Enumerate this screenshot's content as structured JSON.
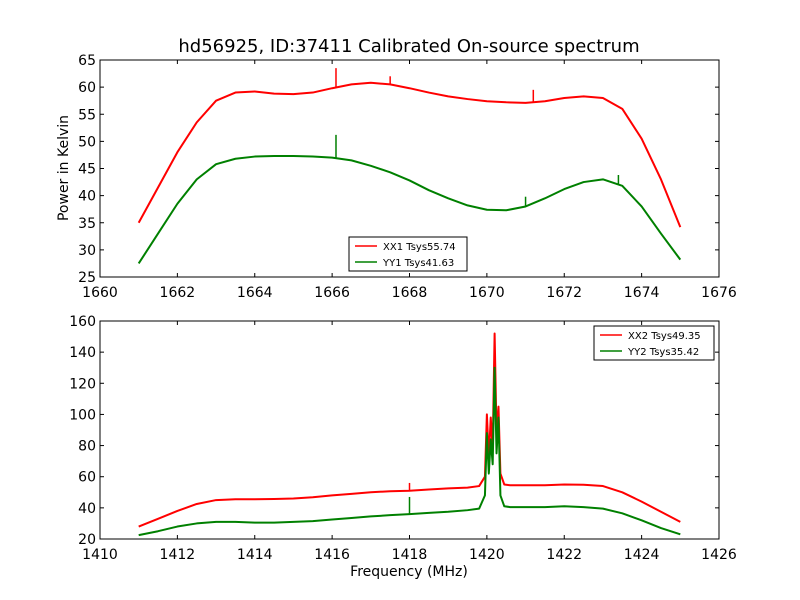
{
  "chart_data": {
    "title": "hd56925, ID:37411 Calibrated On-source spectrum",
    "xlabel": "Frequency (MHz)",
    "panels": [
      {
        "type": "line",
        "ylabel": "Power in Kelvin",
        "xlim": [
          1660,
          1676
        ],
        "ylim": [
          25,
          65
        ],
        "xticks": [
          1660,
          1662,
          1664,
          1666,
          1668,
          1670,
          1672,
          1674,
          1676
        ],
        "yticks": [
          25,
          30,
          35,
          40,
          45,
          50,
          55,
          60,
          65
        ],
        "legend_position": "bottom-center",
        "series": [
          {
            "name": "XX1 Tsys55.74",
            "color": "#ff0000",
            "x": [
              1661.0,
              1661.5,
              1662.0,
              1662.5,
              1663.0,
              1663.5,
              1664.0,
              1664.5,
              1665.0,
              1665.5,
              1666.0,
              1666.5,
              1667.0,
              1667.5,
              1668.0,
              1668.5,
              1669.0,
              1669.5,
              1670.0,
              1670.5,
              1671.0,
              1671.5,
              1672.0,
              1672.5,
              1673.0,
              1673.5,
              1674.0,
              1674.5,
              1675.0
            ],
            "y": [
              35.0,
              41.5,
              48.0,
              53.5,
              57.5,
              59.0,
              59.2,
              58.8,
              58.7,
              59.0,
              59.8,
              60.5,
              60.8,
              60.5,
              59.8,
              59.0,
              58.3,
              57.8,
              57.4,
              57.2,
              57.1,
              57.4,
              58.0,
              58.3,
              58.0,
              56.0,
              50.5,
              43.0,
              34.2
            ],
            "spikes": [
              {
                "x": 1666.1,
                "y": 63.5
              },
              {
                "x": 1667.5,
                "y": 62.0
              },
              {
                "x": 1671.2,
                "y": 59.5
              }
            ]
          },
          {
            "name": "YY1 Tsys41.63",
            "color": "#008000",
            "x": [
              1661.0,
              1661.5,
              1662.0,
              1662.5,
              1663.0,
              1663.5,
              1664.0,
              1664.5,
              1665.0,
              1665.5,
              1666.0,
              1666.5,
              1667.0,
              1667.5,
              1668.0,
              1668.5,
              1669.0,
              1669.5,
              1670.0,
              1670.5,
              1671.0,
              1671.5,
              1672.0,
              1672.5,
              1673.0,
              1673.5,
              1674.0,
              1674.5,
              1675.0
            ],
            "y": [
              27.5,
              33.0,
              38.5,
              43.0,
              45.8,
              46.8,
              47.2,
              47.3,
              47.3,
              47.2,
              47.0,
              46.5,
              45.5,
              44.3,
              42.8,
              41.0,
              39.5,
              38.2,
              37.4,
              37.3,
              38.0,
              39.5,
              41.2,
              42.5,
              43.0,
              41.8,
              38.0,
              33.0,
              28.2
            ],
            "spikes": [
              {
                "x": 1666.1,
                "y": 51.2
              },
              {
                "x": 1671.0,
                "y": 39.8
              },
              {
                "x": 1673.4,
                "y": 43.8
              }
            ]
          }
        ]
      },
      {
        "type": "line",
        "ylabel": "",
        "xlim": [
          1410,
          1426
        ],
        "ylim": [
          20,
          160
        ],
        "xticks": [
          1410,
          1412,
          1414,
          1416,
          1418,
          1420,
          1422,
          1424,
          1426
        ],
        "yticks": [
          20,
          40,
          60,
          80,
          100,
          120,
          140,
          160
        ],
        "legend_position": "top-right",
        "series": [
          {
            "name": "XX2 Tsys49.35",
            "color": "#ff0000",
            "x": [
              1411.0,
              1411.5,
              1412.0,
              1412.5,
              1413.0,
              1413.5,
              1414.0,
              1414.5,
              1415.0,
              1415.5,
              1416.0,
              1416.5,
              1417.0,
              1417.5,
              1418.0,
              1418.5,
              1419.0,
              1419.5,
              1419.8,
              1419.95,
              1420.0,
              1420.05,
              1420.1,
              1420.15,
              1420.2,
              1420.25,
              1420.3,
              1420.35,
              1420.45,
              1420.6,
              1421.0,
              1421.5,
              1422.0,
              1422.5,
              1423.0,
              1423.5,
              1424.0,
              1424.5,
              1425.0
            ],
            "y": [
              28,
              33,
              38,
              42.5,
              45,
              45.5,
              45.5,
              45.7,
              46,
              46.8,
              48,
              49,
              50,
              50.7,
              51,
              51.8,
              52.5,
              53,
              54,
              60,
              100,
              72,
              98,
              78,
              152,
              88,
              105,
              62,
              55,
              54.5,
              54.5,
              54.5,
              55,
              54.8,
              54,
              50,
              44,
              37.5,
              31
            ],
            "spikes": [
              {
                "x": 1418.0,
                "y": 56.0
              }
            ]
          },
          {
            "name": "YY2 Tsys35.42",
            "color": "#008000",
            "x": [
              1411.0,
              1411.5,
              1412.0,
              1412.5,
              1413.0,
              1413.5,
              1414.0,
              1414.5,
              1415.0,
              1415.5,
              1416.0,
              1416.5,
              1417.0,
              1417.5,
              1418.0,
              1418.5,
              1419.0,
              1419.5,
              1419.8,
              1419.95,
              1420.0,
              1420.05,
              1420.1,
              1420.15,
              1420.2,
              1420.25,
              1420.3,
              1420.35,
              1420.45,
              1420.6,
              1421.0,
              1421.5,
              1422.0,
              1422.5,
              1423.0,
              1423.5,
              1424.0,
              1424.5,
              1425.0
            ],
            "y": [
              22.5,
              25,
              28,
              30,
              31,
              31,
              30.5,
              30.5,
              31,
              31.5,
              32.5,
              33.5,
              34.5,
              35.3,
              36,
              36.8,
              37.5,
              38.5,
              39.5,
              48,
              88,
              62,
              84,
              68,
              130,
              75,
              98,
              48,
              41,
              40.5,
              40.5,
              40.5,
              41,
              40.5,
              39.5,
              36.5,
              32,
              27,
              23
            ],
            "spikes": [
              {
                "x": 1418.0,
                "y": 47.0
              }
            ]
          }
        ]
      }
    ]
  }
}
